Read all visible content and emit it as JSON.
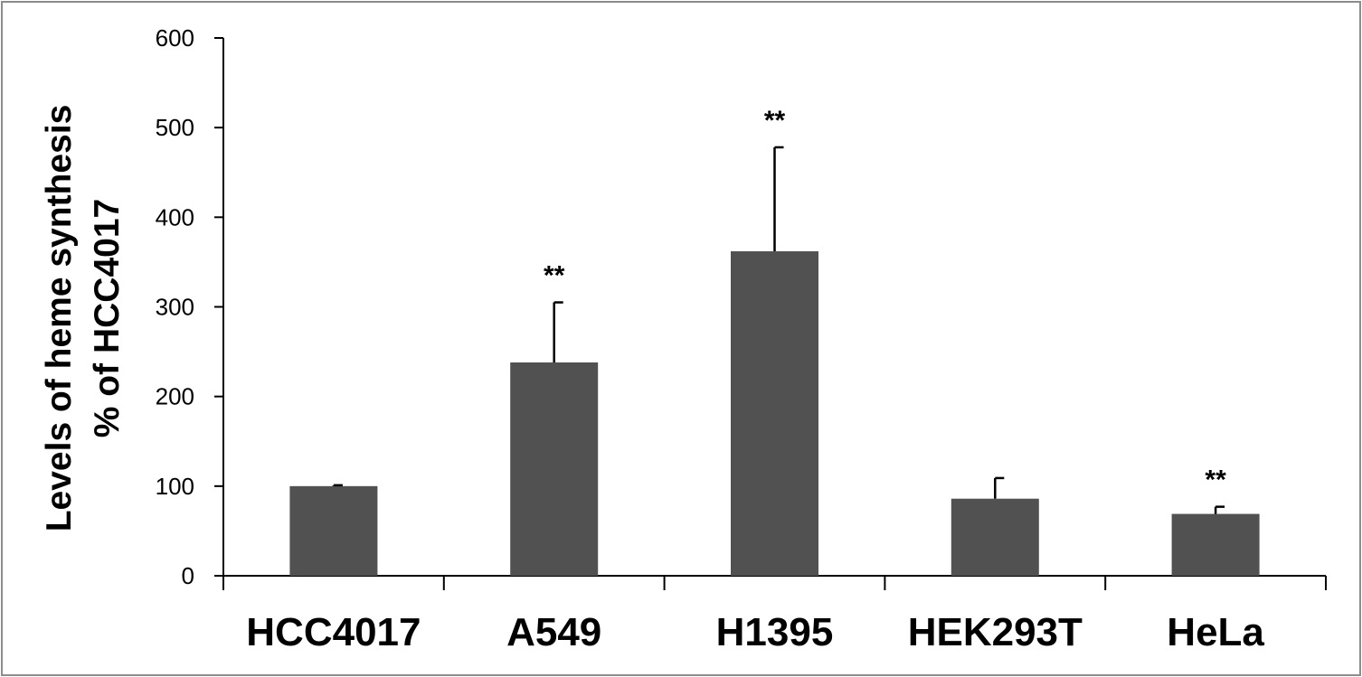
{
  "chart_data": {
    "type": "bar",
    "categories": [
      "HCC4017",
      "A549",
      "H1395",
      "HEK293T",
      "HeLa"
    ],
    "values": [
      100,
      238,
      362,
      86,
      69
    ],
    "error_upper": [
      101,
      305,
      478,
      109,
      77
    ],
    "significance": [
      "",
      "**",
      "**",
      "",
      "**"
    ],
    "ylabel_lines": [
      "Levels of heme synthesis",
      "% of HCC4017"
    ],
    "ylim": [
      0,
      600
    ],
    "yticks": [
      0,
      100,
      200,
      300,
      400,
      500,
      600
    ],
    "grid": false,
    "legend": "none",
    "colors": {
      "bar": "#515151",
      "axis": "#000000",
      "frame": "#8c8c8c"
    }
  }
}
